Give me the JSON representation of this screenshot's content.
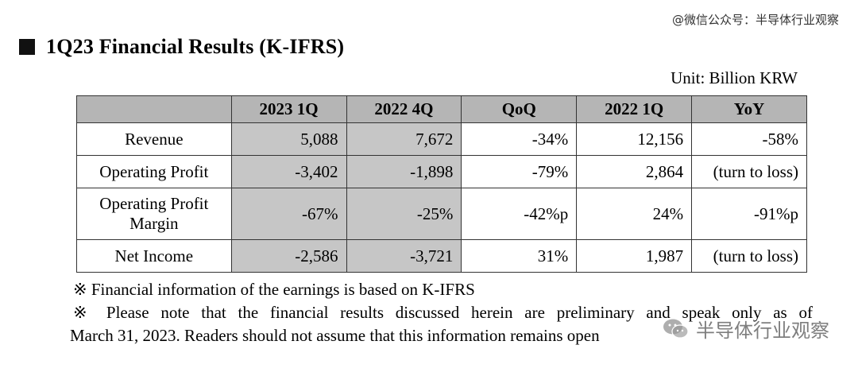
{
  "watermark_top": "@微信公众号：半导体行业观察",
  "title": "1Q23 Financial Results (K-IFRS)",
  "unit": "Unit: Billion KRW",
  "table": {
    "headers": [
      "",
      "2023 1Q",
      "2022 4Q",
      "QoQ",
      "2022 1Q",
      "YoY"
    ],
    "rows": [
      {
        "label": "Revenue",
        "cells": [
          "5,088",
          "7,672",
          "-34%",
          "12,156",
          "-58%"
        ]
      },
      {
        "label": "Operating Profit",
        "cells": [
          "-3,402",
          "-1,898",
          "-79%",
          "2,864",
          "(turn to loss)"
        ]
      },
      {
        "label_line1": "Operating Profit",
        "label_line2": "Margin",
        "cells": [
          "-67%",
          "-25%",
          "-42%p",
          "24%",
          "-91%p"
        ]
      },
      {
        "label": "Net Income",
        "cells": [
          "-2,586",
          "-3,721",
          "31%",
          "1,987",
          "(turn to loss)"
        ]
      }
    ]
  },
  "notes": {
    "line1": "※ Financial information of the earnings is based on K-IFRS",
    "line2": "※ Please note that the financial results discussed herein are preliminary and speak only as of",
    "line3": "March 31, 2023. Readers should not assume that this information remains open"
  },
  "watermark_bottom": "半导体行业观察",
  "icons": {
    "wechat_logo": "wechat-icon",
    "title_marker": "square-bullet-icon"
  }
}
